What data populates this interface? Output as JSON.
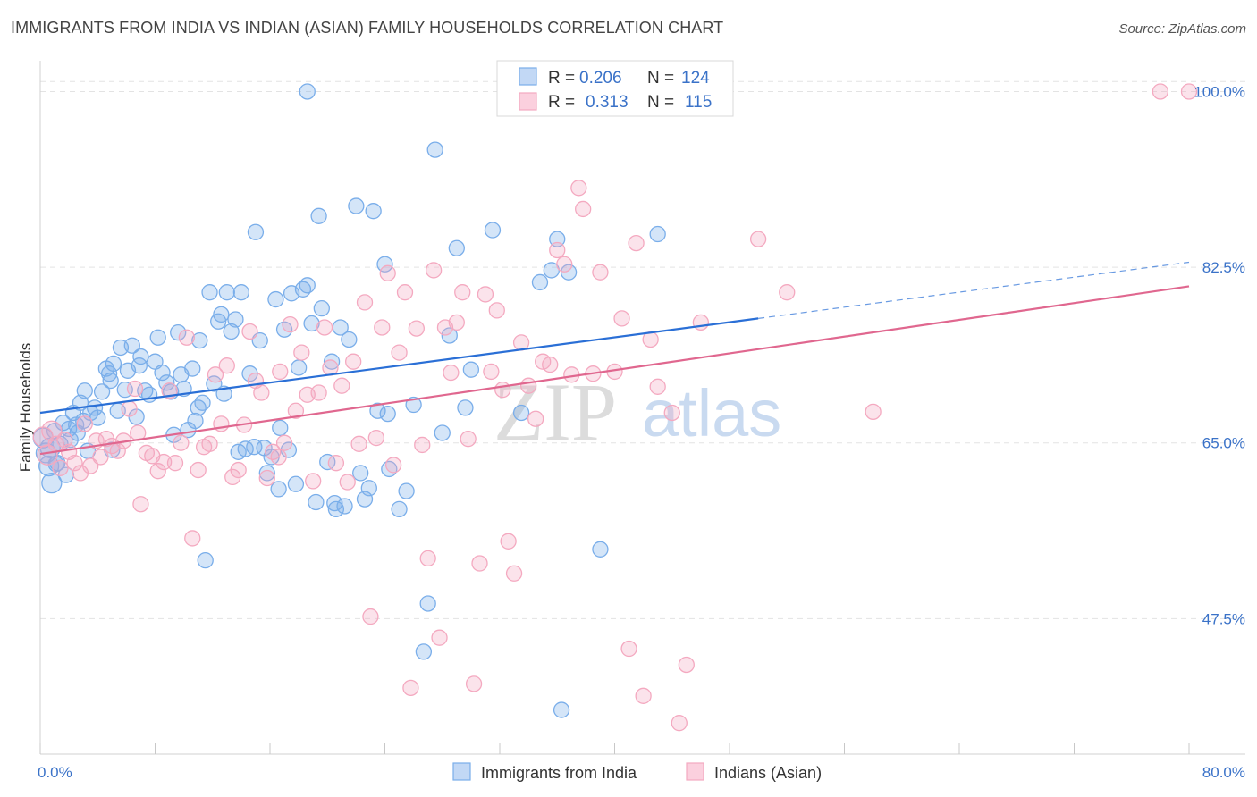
{
  "title": "IMMIGRANTS FROM INDIA VS INDIAN (ASIAN) FAMILY HOUSEHOLDS CORRELATION CHART",
  "source": "Source: ZipAtlas.com",
  "watermark": {
    "part1": "ZIP",
    "part2": "atlas"
  },
  "legend": {
    "r_label": "R =",
    "n_label": "N =",
    "rows": [
      {
        "r": "0.206",
        "n": "124",
        "color": "#7aaeea"
      },
      {
        "r": "0.313",
        "n": "115",
        "color": "#f4a9c0"
      }
    ]
  },
  "chart_data": {
    "type": "scatter",
    "xlabel": "",
    "ylabel": "Family Households",
    "xlim": [
      0,
      80
    ],
    "ylim": [
      34,
      102
    ],
    "x_tick_labels": [
      "0.0%",
      "80.0%"
    ],
    "y_ticks": [
      47.5,
      65.0,
      82.5,
      100.0
    ],
    "y_tick_labels": [
      "47.5%",
      "65.0%",
      "82.5%",
      "100.0%"
    ],
    "grid": true,
    "series": [
      {
        "name": "Immigrants from India",
        "color": "#7aaeea",
        "line_color": "#2a6fd6",
        "trend": {
          "x0": 0,
          "y0": 68.0,
          "x1": 50,
          "y1": 77.4,
          "dash_to_x": 80,
          "dash_to_y": 83.0
        },
        "points": [
          [
            0.2,
            65.5
          ],
          [
            0.4,
            64.0
          ],
          [
            0.6,
            62.7
          ],
          [
            0.8,
            61.0
          ],
          [
            1.0,
            66.2
          ],
          [
            1.2,
            63.0
          ],
          [
            1.4,
            64.9
          ],
          [
            1.6,
            67.0
          ],
          [
            1.8,
            61.8
          ],
          [
            2.0,
            66.4
          ],
          [
            2.3,
            68.0
          ],
          [
            2.6,
            66.0
          ],
          [
            2.8,
            69.0
          ],
          [
            3.0,
            67.2
          ],
          [
            3.3,
            64.2
          ],
          [
            3.5,
            68.0
          ],
          [
            3.8,
            68.5
          ],
          [
            4.0,
            67.5
          ],
          [
            4.3,
            70.1
          ],
          [
            4.6,
            72.4
          ],
          [
            4.9,
            71.2
          ],
          [
            5.1,
            72.9
          ],
          [
            5.4,
            68.2
          ],
          [
            5.6,
            74.5
          ],
          [
            5.9,
            70.3
          ],
          [
            6.1,
            72.2
          ],
          [
            6.4,
            74.7
          ],
          [
            6.7,
            67.6
          ],
          [
            7.0,
            73.6
          ],
          [
            7.3,
            70.2
          ],
          [
            7.6,
            69.8
          ],
          [
            8.0,
            73.1
          ],
          [
            8.2,
            75.5
          ],
          [
            8.5,
            72.0
          ],
          [
            8.8,
            71.0
          ],
          [
            9.1,
            70.1
          ],
          [
            9.3,
            65.8
          ],
          [
            9.6,
            76.0
          ],
          [
            10.0,
            70.4
          ],
          [
            10.3,
            66.3
          ],
          [
            10.6,
            72.4
          ],
          [
            10.8,
            67.2
          ],
          [
            11.1,
            75.2
          ],
          [
            11.3,
            69.0
          ],
          [
            11.5,
            53.3
          ],
          [
            11.8,
            80.0
          ],
          [
            12.1,
            70.9
          ],
          [
            12.4,
            77.1
          ],
          [
            12.8,
            69.9
          ],
          [
            13.0,
            80.0
          ],
          [
            13.3,
            76.1
          ],
          [
            13.6,
            77.3
          ],
          [
            13.8,
            64.1
          ],
          [
            14.0,
            80.0
          ],
          [
            14.3,
            64.4
          ],
          [
            14.6,
            71.9
          ],
          [
            15.0,
            86.0
          ],
          [
            15.3,
            75.2
          ],
          [
            15.6,
            64.5
          ],
          [
            15.8,
            62.0
          ],
          [
            16.1,
            63.6
          ],
          [
            16.4,
            79.3
          ],
          [
            16.7,
            66.5
          ],
          [
            17.0,
            76.3
          ],
          [
            17.3,
            64.3
          ],
          [
            17.5,
            79.9
          ],
          [
            17.8,
            60.9
          ],
          [
            18.0,
            72.5
          ],
          [
            18.3,
            80.3
          ],
          [
            18.6,
            80.7
          ],
          [
            18.9,
            76.9
          ],
          [
            19.2,
            59.1
          ],
          [
            19.4,
            87.6
          ],
          [
            19.6,
            78.4
          ],
          [
            20.0,
            63.1
          ],
          [
            20.3,
            73.1
          ],
          [
            20.6,
            58.4
          ],
          [
            20.9,
            76.5
          ],
          [
            21.2,
            58.7
          ],
          [
            21.5,
            75.3
          ],
          [
            22.0,
            88.6
          ],
          [
            22.3,
            62.0
          ],
          [
            22.6,
            59.4
          ],
          [
            23.2,
            88.1
          ],
          [
            23.5,
            68.2
          ],
          [
            24.0,
            82.8
          ],
          [
            24.3,
            62.4
          ],
          [
            25.0,
            58.4
          ],
          [
            26.0,
            68.8
          ],
          [
            27.0,
            49.0
          ],
          [
            27.5,
            94.2
          ],
          [
            28.0,
            66.0
          ],
          [
            28.5,
            75.7
          ],
          [
            29.0,
            84.4
          ],
          [
            29.6,
            68.5
          ],
          [
            30.0,
            72.3
          ],
          [
            31.5,
            86.2
          ],
          [
            33.5,
            68.0
          ],
          [
            34.8,
            81.0
          ],
          [
            35.6,
            82.2
          ],
          [
            36.0,
            85.3
          ],
          [
            36.3,
            38.4
          ],
          [
            36.8,
            82.0
          ],
          [
            39.0,
            54.4
          ],
          [
            43.0,
            85.8
          ],
          [
            18.6,
            100.0
          ],
          [
            0.7,
            64.5
          ],
          [
            1.1,
            62.9
          ],
          [
            2.1,
            65.3
          ],
          [
            3.1,
            70.2
          ],
          [
            6.9,
            72.7
          ],
          [
            9.8,
            71.8
          ],
          [
            12.6,
            77.8
          ],
          [
            14.9,
            64.6
          ],
          [
            20.5,
            59.0
          ],
          [
            25.5,
            60.2
          ],
          [
            24.2,
            67.9
          ],
          [
            16.6,
            60.4
          ],
          [
            11.0,
            68.5
          ],
          [
            22.9,
            60.5
          ],
          [
            2.5,
            66.8
          ],
          [
            4.8,
            71.9
          ],
          [
            26.7,
            44.2
          ],
          [
            5.0,
            64.3
          ]
        ]
      },
      {
        "name": "Indians (Asian)",
        "color": "#f4a9c0",
        "line_color": "#e0678f",
        "trend": {
          "x0": 0,
          "y0": 63.9,
          "x1": 80,
          "y1": 80.6
        },
        "points": [
          [
            0.2,
            65.6
          ],
          [
            0.5,
            63.8
          ],
          [
            0.8,
            66.2
          ],
          [
            1.1,
            64.9
          ],
          [
            1.4,
            62.5
          ],
          [
            1.7,
            65.3
          ],
          [
            2.0,
            64.1
          ],
          [
            2.4,
            63.0
          ],
          [
            2.8,
            62.0
          ],
          [
            3.1,
            66.9
          ],
          [
            3.5,
            62.7
          ],
          [
            3.9,
            65.2
          ],
          [
            4.2,
            63.6
          ],
          [
            4.6,
            65.4
          ],
          [
            5.0,
            64.7
          ],
          [
            5.4,
            64.2
          ],
          [
            5.8,
            65.2
          ],
          [
            6.2,
            68.4
          ],
          [
            6.6,
            70.4
          ],
          [
            7.0,
            58.9
          ],
          [
            7.4,
            64.0
          ],
          [
            7.8,
            63.7
          ],
          [
            8.2,
            62.2
          ],
          [
            8.6,
            63.1
          ],
          [
            9.0,
            70.2
          ],
          [
            9.4,
            63.0
          ],
          [
            9.8,
            65.0
          ],
          [
            10.2,
            75.5
          ],
          [
            10.6,
            55.5
          ],
          [
            11.0,
            62.3
          ],
          [
            11.4,
            64.6
          ],
          [
            11.8,
            64.9
          ],
          [
            12.2,
            71.8
          ],
          [
            12.6,
            66.9
          ],
          [
            13.0,
            72.7
          ],
          [
            13.4,
            61.6
          ],
          [
            13.8,
            62.3
          ],
          [
            14.2,
            66.8
          ],
          [
            14.6,
            76.1
          ],
          [
            15.0,
            71.2
          ],
          [
            15.4,
            70.0
          ],
          [
            15.8,
            61.5
          ],
          [
            16.2,
            64.1
          ],
          [
            16.6,
            63.6
          ],
          [
            17.0,
            65.0
          ],
          [
            17.4,
            76.8
          ],
          [
            17.8,
            68.2
          ],
          [
            18.2,
            74.0
          ],
          [
            18.6,
            69.8
          ],
          [
            19.0,
            61.2
          ],
          [
            19.4,
            70.0
          ],
          [
            19.8,
            76.5
          ],
          [
            20.2,
            72.5
          ],
          [
            20.6,
            63.0
          ],
          [
            21.0,
            70.7
          ],
          [
            21.4,
            61.1
          ],
          [
            21.8,
            73.1
          ],
          [
            22.2,
            64.9
          ],
          [
            22.6,
            79.0
          ],
          [
            23.0,
            47.7
          ],
          [
            23.4,
            65.5
          ],
          [
            23.8,
            76.5
          ],
          [
            24.2,
            81.9
          ],
          [
            24.6,
            62.8
          ],
          [
            25.0,
            74.0
          ],
          [
            25.4,
            80.0
          ],
          [
            25.8,
            40.6
          ],
          [
            26.2,
            76.4
          ],
          [
            26.6,
            64.8
          ],
          [
            27.0,
            53.5
          ],
          [
            27.4,
            82.2
          ],
          [
            27.8,
            45.6
          ],
          [
            28.2,
            76.5
          ],
          [
            28.6,
            72.0
          ],
          [
            29.0,
            77.0
          ],
          [
            29.4,
            80.0
          ],
          [
            29.8,
            65.4
          ],
          [
            30.2,
            41.0
          ],
          [
            30.6,
            53.0
          ],
          [
            31.0,
            79.8
          ],
          [
            31.4,
            72.1
          ],
          [
            31.8,
            78.2
          ],
          [
            32.2,
            70.3
          ],
          [
            32.6,
            55.2
          ],
          [
            33.0,
            52.0
          ],
          [
            33.5,
            75.0
          ],
          [
            34.0,
            70.7
          ],
          [
            34.5,
            67.4
          ],
          [
            35.0,
            73.1
          ],
          [
            35.5,
            72.8
          ],
          [
            36.0,
            84.2
          ],
          [
            36.5,
            82.8
          ],
          [
            37.0,
            71.8
          ],
          [
            37.5,
            90.4
          ],
          [
            37.8,
            88.3
          ],
          [
            38.5,
            71.9
          ],
          [
            39.0,
            82.0
          ],
          [
            40.0,
            72.1
          ],
          [
            40.5,
            77.4
          ],
          [
            41.0,
            44.5
          ],
          [
            41.5,
            84.9
          ],
          [
            42.0,
            39.8
          ],
          [
            42.5,
            75.3
          ],
          [
            43.0,
            70.6
          ],
          [
            44.0,
            68.0
          ],
          [
            44.5,
            37.1
          ],
          [
            45.0,
            42.9
          ],
          [
            46.0,
            77.0
          ],
          [
            50.0,
            85.3
          ],
          [
            52.0,
            80.0
          ],
          [
            58.0,
            68.1
          ],
          [
            78.0,
            100.0
          ],
          [
            80.0,
            100.0
          ],
          [
            16.7,
            72.1
          ],
          [
            6.8,
            66.0
          ]
        ]
      }
    ]
  },
  "bottom_legend": [
    {
      "label": "Immigrants from India",
      "color": "#7aaeea"
    },
    {
      "label": "Indians (Asian)",
      "color": "#f4a9c0"
    }
  ]
}
